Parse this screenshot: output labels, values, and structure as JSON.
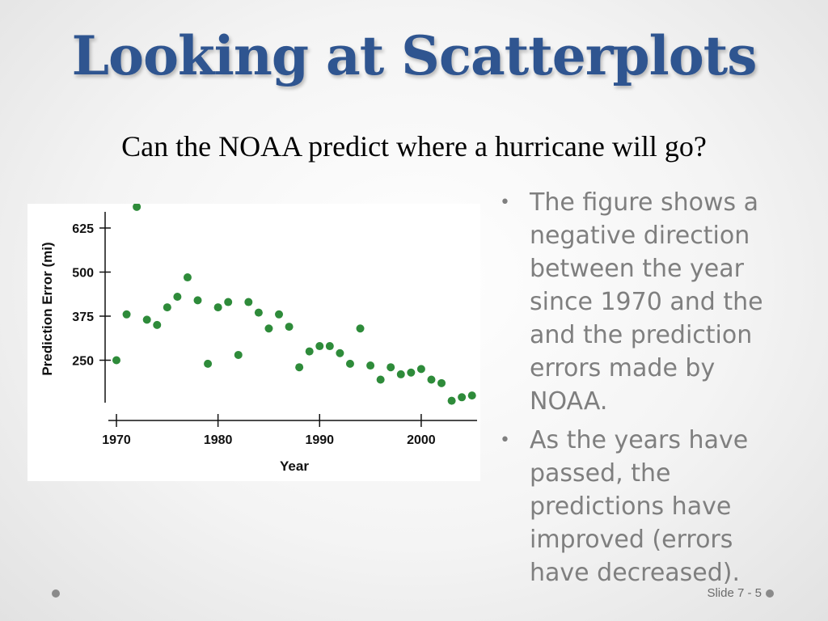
{
  "slide": {
    "title": "Looking at Scatterplots",
    "subtitle": "Can the NOAA predict where a hurricane will go?",
    "bullets": [
      "The figure shows a negative direction between the year since 1970 and the and the prediction errors made by NOAA.",
      "As the years have passed, the predictions have improved (errors have decreased)."
    ],
    "slide_number": "Slide 7 - 5",
    "colors": {
      "title": "#2f5590",
      "bullet_text": "#7f7f7f",
      "point": "#2e8b3a"
    }
  },
  "chart_data": {
    "type": "scatter",
    "title": "",
    "xlabel": "Year",
    "ylabel": "Prediction Error (mi)",
    "xlim": [
      1969,
      2005.5
    ],
    "ylim": [
      125,
      680
    ],
    "xticks": [
      1970,
      1980,
      1990,
      2000
    ],
    "yticks": [
      250,
      375,
      500,
      625
    ],
    "grid": false,
    "points": [
      {
        "x": 1970,
        "y": 250
      },
      {
        "x": 1971,
        "y": 380
      },
      {
        "x": 1972,
        "y": 685
      },
      {
        "x": 1973,
        "y": 365
      },
      {
        "x": 1974,
        "y": 350
      },
      {
        "x": 1975,
        "y": 400
      },
      {
        "x": 1976,
        "y": 430
      },
      {
        "x": 1977,
        "y": 485
      },
      {
        "x": 1978,
        "y": 420
      },
      {
        "x": 1979,
        "y": 240
      },
      {
        "x": 1980,
        "y": 400
      },
      {
        "x": 1981,
        "y": 415
      },
      {
        "x": 1982,
        "y": 265
      },
      {
        "x": 1983,
        "y": 415
      },
      {
        "x": 1984,
        "y": 385
      },
      {
        "x": 1985,
        "y": 340
      },
      {
        "x": 1986,
        "y": 380
      },
      {
        "x": 1987,
        "y": 345
      },
      {
        "x": 1988,
        "y": 230
      },
      {
        "x": 1989,
        "y": 275
      },
      {
        "x": 1990,
        "y": 290
      },
      {
        "x": 1991,
        "y": 290
      },
      {
        "x": 1992,
        "y": 270
      },
      {
        "x": 1993,
        "y": 240
      },
      {
        "x": 1994,
        "y": 340
      },
      {
        "x": 1995,
        "y": 235
      },
      {
        "x": 1996,
        "y": 195
      },
      {
        "x": 1997,
        "y": 230
      },
      {
        "x": 1998,
        "y": 210
      },
      {
        "x": 1999,
        "y": 215
      },
      {
        "x": 2000,
        "y": 225
      },
      {
        "x": 2001,
        "y": 195
      },
      {
        "x": 2002,
        "y": 185
      },
      {
        "x": 2003,
        "y": 135
      },
      {
        "x": 2004,
        "y": 145
      },
      {
        "x": 2005,
        "y": 150
      }
    ]
  }
}
